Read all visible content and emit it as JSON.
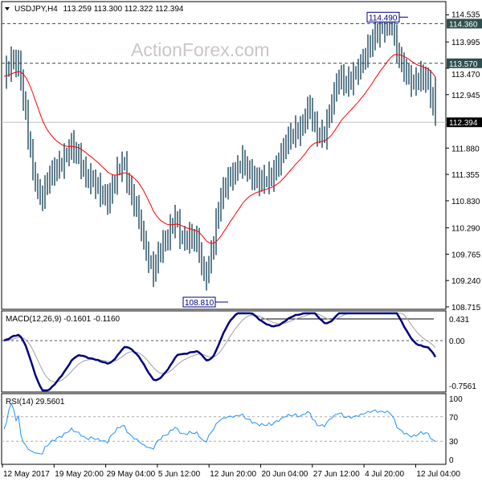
{
  "header": {
    "symbol": "USDJPY,H4",
    "ohlc": "113.259 113.300 112.322 112.394"
  },
  "watermark": "ActionForex.com",
  "colors": {
    "bars": "#0d3b55",
    "ma": "#ff0000",
    "macd": "#000080",
    "signal": "#a0a0a0",
    "rsi": "#1e90ff",
    "level_box": "#2f4f4f"
  },
  "chart_data": {
    "type": "bar",
    "symbol": "USDJPY",
    "timeframe": "H4",
    "price_ticks": [
      "114.535",
      "113.995",
      "113.470",
      "112.945",
      "111.880",
      "111.355",
      "110.830",
      "110.290",
      "109.765",
      "109.240",
      "108.715"
    ],
    "ylim": [
      108.715,
      114.535
    ],
    "time_ticks": [
      "12 May 2017",
      "19 May 20:00",
      "29 May 04:00",
      "5 Jun 12:00",
      "12 Jun 20:00",
      "20 Jun 04:00",
      "27 Jun 12:00",
      "4 Jul 20:00",
      "12 Jul 04:00"
    ],
    "close_path": [
      113.31,
      113.63,
      113.55,
      112.43,
      111.31,
      110.83,
      111.31,
      111.47,
      111.63,
      111.95,
      111.71,
      111.31,
      111.23,
      110.99,
      110.83,
      111.31,
      111.63,
      110.99,
      110.59,
      109.87,
      109.39,
      109.87,
      110.11,
      110.51,
      110.03,
      110.11,
      110.03,
      109.23,
      109.87,
      110.83,
      111.23,
      111.39,
      111.63,
      111.39,
      111.23,
      111.23,
      111.31,
      111.63,
      112.03,
      112.19,
      112.27,
      112.75,
      112.19,
      112.11,
      112.75,
      113.31,
      113.15,
      113.31,
      113.55,
      113.87,
      114.19,
      114.27,
      114.43,
      113.71,
      113.39,
      113.15,
      113.31,
      113.23,
      112.43
    ],
    "levels": [
      {
        "value": "114.360",
        "style": "dashed"
      },
      {
        "value": "113.570",
        "style": "dashed"
      },
      {
        "value": "112.394",
        "style": "current"
      }
    ],
    "annotations": {
      "high": "114.490",
      "low": "108.810"
    },
    "macd": {
      "label": "MACD(12,26,9) -0.1601 -0.1160",
      "ticks": [
        "0.431",
        "0.00",
        "-0.7561"
      ]
    },
    "rsi": {
      "label": "RSI(14) 29.5601",
      "ticks": [
        "100",
        "70",
        "30",
        "0"
      ]
    }
  }
}
